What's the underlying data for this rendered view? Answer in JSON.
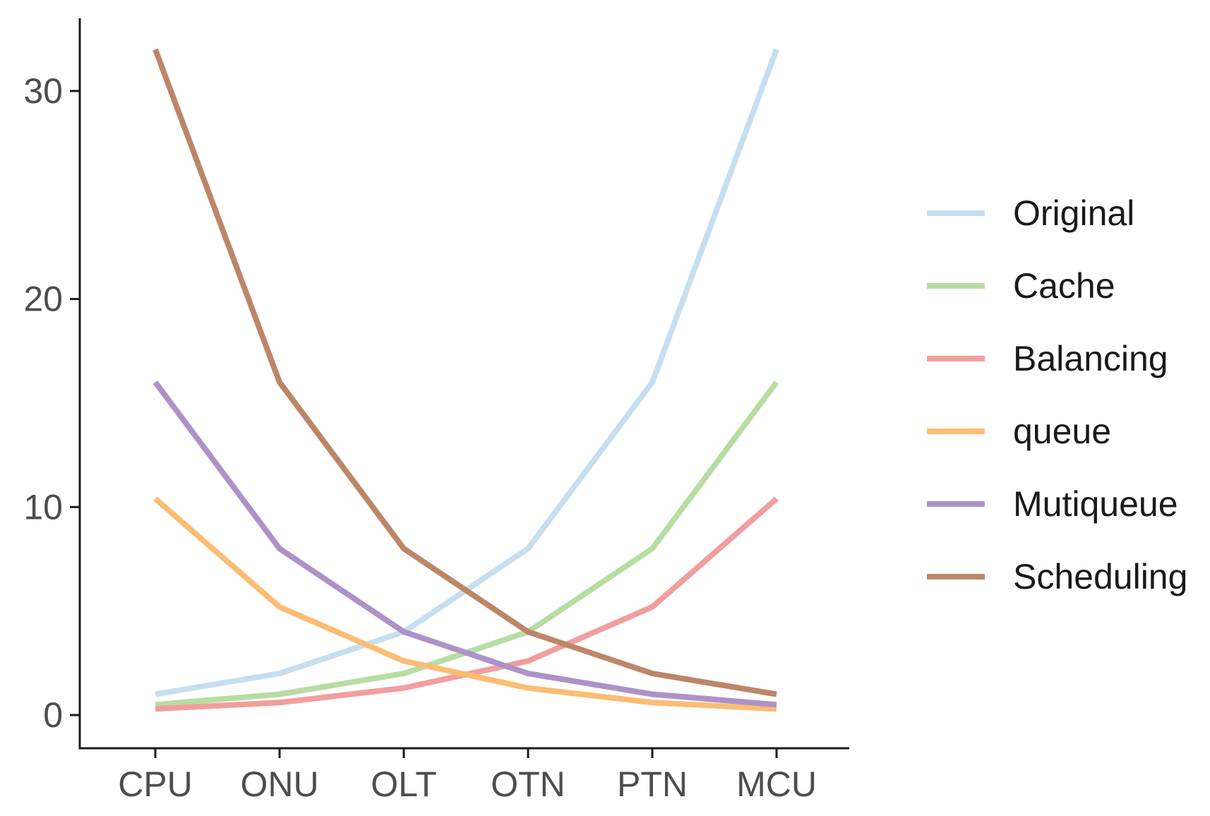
{
  "chart_data": {
    "type": "line",
    "title": "",
    "xlabel": "",
    "ylabel": "",
    "categories": [
      "CPU",
      "ONU",
      "OLT",
      "OTN",
      "PTN",
      "MCU"
    ],
    "ylim": [
      -1.5,
      33.5
    ],
    "yticks": [
      0,
      10,
      20,
      30
    ],
    "grid": false,
    "legend_position": "right",
    "series": [
      {
        "name": "Original",
        "color": "#c6dff0",
        "values": [
          1,
          2,
          4,
          8,
          16,
          32
        ]
      },
      {
        "name": "Cache",
        "color": "#b7dda3",
        "values": [
          0.5,
          1,
          2,
          4,
          8,
          16
        ]
      },
      {
        "name": "Balancing",
        "color": "#f29e9e",
        "values": [
          0.3,
          0.6,
          1.3,
          2.6,
          5.2,
          10.4
        ]
      },
      {
        "name": "queue",
        "color": "#fbbd74",
        "values": [
          10.4,
          5.2,
          2.6,
          1.3,
          0.6,
          0.3
        ]
      },
      {
        "name": "Mutiqueue",
        "color": "#ad92c8",
        "values": [
          16,
          8,
          4,
          2,
          1,
          0.5
        ]
      },
      {
        "name": "Scheduling",
        "color": "#bc8668",
        "values": [
          32,
          16,
          8,
          4,
          2,
          1
        ]
      }
    ]
  }
}
